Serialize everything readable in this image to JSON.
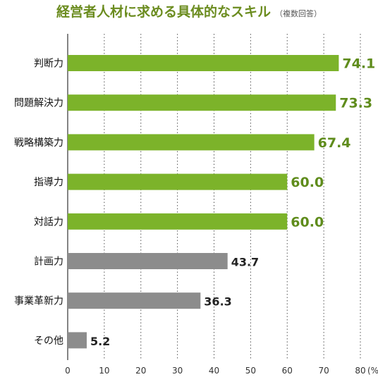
{
  "chart_data": {
    "type": "bar",
    "orientation": "horizontal",
    "title": "経営者人材に求める具体的なスキル",
    "subtitle": "（複数回答）",
    "categories": [
      "判断力",
      "問題解決力",
      "戦略構築力",
      "指導力",
      "対話力",
      "計画力",
      "事業革新力",
      "その他"
    ],
    "values": [
      74.1,
      73.3,
      67.4,
      60.0,
      60.0,
      43.7,
      36.3,
      5.2
    ],
    "value_labels": [
      "74.1",
      "73.3",
      "67.4",
      "60.0",
      "60.0",
      "43.7",
      "36.3",
      "5.2"
    ],
    "highlight_top_n": 5,
    "colors": {
      "highlight": "#7cb32a",
      "highlight_text": "#5f8c1c",
      "normal": "#8c8c8c",
      "normal_text": "#222222",
      "axis_text": "#333333"
    },
    "xlim": [
      0,
      80
    ],
    "xticks": [
      0,
      10,
      20,
      30,
      40,
      50,
      60,
      70,
      80
    ],
    "xtick_labels": [
      "0",
      "10",
      "20",
      "30",
      "40",
      "50",
      "60",
      "70",
      "80"
    ],
    "x_unit": "(%)",
    "grid": "vertical dotted"
  }
}
